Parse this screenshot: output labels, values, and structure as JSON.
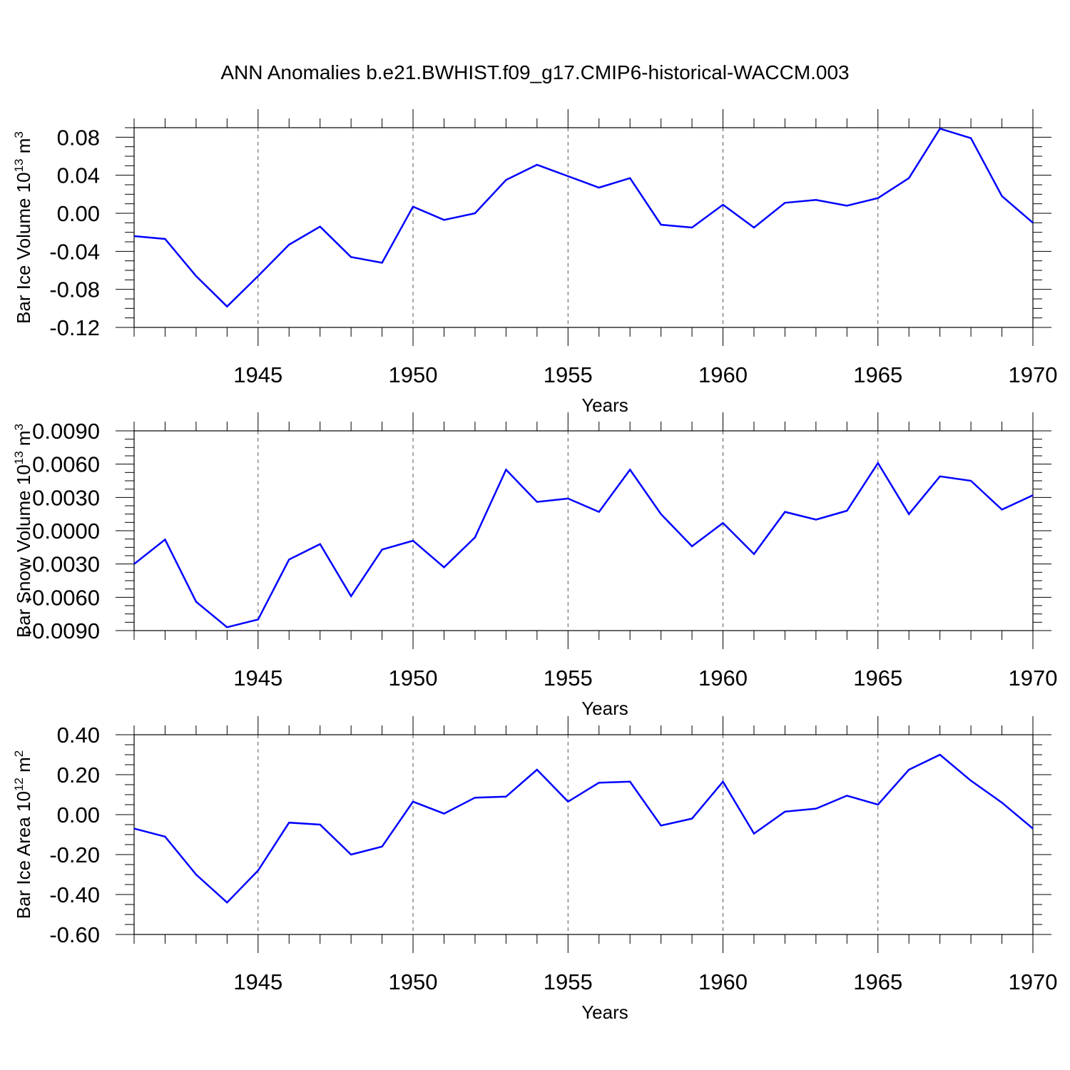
{
  "title": "ANN Anomalies b.e21.BWHIST.f09_g17.CMIP6-historical-WACCM.003",
  "chart_data": [
    {
      "type": "line",
      "ylabel": "Bar Ice Volume 10",
      "ylabel_sup": "13",
      "ylabel_unit": " m",
      "ylabel_unit_sup": "3",
      "xlabel": "Years",
      "xlim": [
        1941,
        1970
      ],
      "ylim": [
        -0.12,
        0.09
      ],
      "yticks": [
        -0.12,
        -0.08,
        -0.04,
        0.0,
        0.04,
        0.08
      ],
      "ytick_labels": [
        "-0.12",
        "-0.08",
        "-0.04",
        "0.00",
        "0.04",
        "0.08"
      ],
      "xticks": [
        1945,
        1950,
        1955,
        1960,
        1965,
        1970
      ],
      "xtick_labels": [
        "1945",
        "1950",
        "1955",
        "1960",
        "1965",
        "1970"
      ],
      "grid": "dashed vertical at labeled years",
      "line_color": "#0000ff",
      "x": [
        1941,
        1942,
        1943,
        1944,
        1945,
        1946,
        1947,
        1948,
        1949,
        1950,
        1951,
        1952,
        1953,
        1954,
        1955,
        1956,
        1957,
        1958,
        1959,
        1960,
        1961,
        1962,
        1963,
        1964,
        1965,
        1966,
        1967,
        1968,
        1969,
        1970
      ],
      "values": [
        -0.024,
        -0.027,
        -0.066,
        -0.098,
        -0.066,
        -0.033,
        -0.014,
        -0.046,
        -0.052,
        0.007,
        -0.007,
        0.0,
        0.035,
        0.051,
        0.039,
        0.027,
        0.037,
        -0.012,
        -0.015,
        0.009,
        -0.015,
        0.011,
        0.014,
        0.008,
        0.016,
        0.037,
        0.089,
        0.079,
        0.018,
        -0.01
      ]
    },
    {
      "type": "line",
      "ylabel": "Bar Snow Volume 10",
      "ylabel_sup": "13",
      "ylabel_unit": " m",
      "ylabel_unit_sup": "3",
      "xlabel": "Years",
      "xlim": [
        1941,
        1970
      ],
      "ylim": [
        -0.009,
        0.009
      ],
      "yticks": [
        -0.009,
        -0.006,
        -0.003,
        0.0,
        0.003,
        0.006,
        0.009
      ],
      "ytick_labels": [
        "-0.0090",
        "-0.0060",
        "-0.0030",
        "0.0000",
        "0.0030",
        "0.0060",
        "0.0090"
      ],
      "xticks": [
        1945,
        1950,
        1955,
        1960,
        1965,
        1970
      ],
      "xtick_labels": [
        "1945",
        "1950",
        "1955",
        "1960",
        "1965",
        "1970"
      ],
      "grid": "dashed vertical at labeled years",
      "line_color": "#0000ff",
      "x": [
        1941,
        1942,
        1943,
        1944,
        1945,
        1946,
        1947,
        1948,
        1949,
        1950,
        1951,
        1952,
        1953,
        1954,
        1955,
        1956,
        1957,
        1958,
        1959,
        1960,
        1961,
        1962,
        1963,
        1964,
        1965,
        1966,
        1967,
        1968,
        1969,
        1970
      ],
      "values": [
        -0.003,
        -0.0008,
        -0.0064,
        -0.0087,
        -0.008,
        -0.0026,
        -0.0012,
        -0.0059,
        -0.0017,
        -0.0009,
        -0.0033,
        -0.0006,
        0.0055,
        0.0026,
        0.0029,
        0.0017,
        0.0055,
        0.0015,
        -0.0014,
        0.0007,
        -0.0021,
        0.0017,
        0.001,
        0.0018,
        0.0061,
        0.0015,
        0.0049,
        0.0045,
        0.0019,
        0.0032
      ]
    },
    {
      "type": "line",
      "ylabel": "Bar Ice Area 10",
      "ylabel_sup": "12",
      "ylabel_unit": " m",
      "ylabel_unit_sup": "2",
      "xlabel": "Years",
      "xlim": [
        1941,
        1970
      ],
      "ylim": [
        -0.6,
        0.4
      ],
      "yticks": [
        -0.6,
        -0.4,
        -0.2,
        0.0,
        0.2,
        0.4
      ],
      "ytick_labels": [
        "-0.60",
        "-0.40",
        "-0.20",
        "0.00",
        "0.20",
        "0.40"
      ],
      "xticks": [
        1945,
        1950,
        1955,
        1960,
        1965,
        1970
      ],
      "xtick_labels": [
        "1945",
        "1950",
        "1955",
        "1960",
        "1965",
        "1970"
      ],
      "grid": "dashed vertical at labeled years",
      "line_color": "#0000ff",
      "x": [
        1941,
        1942,
        1943,
        1944,
        1945,
        1946,
        1947,
        1948,
        1949,
        1950,
        1951,
        1952,
        1953,
        1954,
        1955,
        1956,
        1957,
        1958,
        1959,
        1960,
        1961,
        1962,
        1963,
        1964,
        1965,
        1966,
        1967,
        1968,
        1969,
        1970
      ],
      "values": [
        -0.07,
        -0.11,
        -0.3,
        -0.44,
        -0.28,
        -0.04,
        -0.05,
        -0.2,
        -0.16,
        0.065,
        0.005,
        0.085,
        0.09,
        0.225,
        0.065,
        0.16,
        0.165,
        -0.055,
        -0.02,
        0.165,
        -0.095,
        0.015,
        0.03,
        0.095,
        0.05,
        0.225,
        0.3,
        0.17,
        0.06,
        -0.07
      ]
    }
  ]
}
